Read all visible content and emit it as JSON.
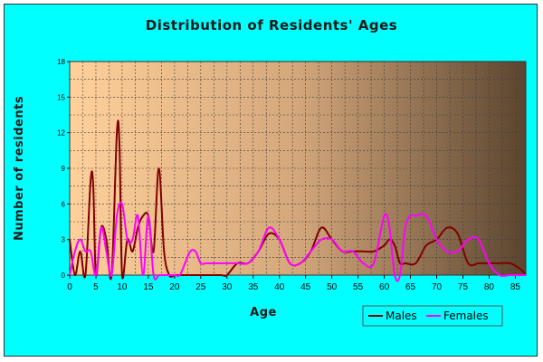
{
  "colors": {
    "frame_background": "#00ffff",
    "plot_gradient_start": "#ffd09a",
    "plot_gradient_mid": "#d4a77b",
    "plot_gradient_end": "#5a4530",
    "males": "#800000",
    "females": "#ff00ff"
  },
  "chart_data": {
    "type": "line",
    "title": "Distribution of Residents' Ages",
    "xlabel": "Age",
    "ylabel": "Number of residents",
    "xlim": [
      0,
      87
    ],
    "ylim": [
      0,
      18
    ],
    "xticks": [
      0,
      5,
      10,
      15,
      20,
      25,
      30,
      35,
      40,
      45,
      50,
      55,
      60,
      65,
      70,
      75,
      80,
      85
    ],
    "yticks": [
      0,
      3,
      6,
      9,
      12,
      15,
      18
    ],
    "grid": true,
    "legend_position": "bottom-right",
    "series": [
      {
        "name": "Males",
        "color": "#800000",
        "x": [
          0,
          1,
          2,
          3,
          4,
          4.5,
          5,
          6,
          7,
          8,
          9,
          9.5,
          10,
          11,
          12,
          13,
          14,
          15,
          16,
          17,
          18,
          19,
          20,
          21,
          22,
          23,
          24,
          25,
          26,
          27,
          28,
          29,
          30,
          32,
          34,
          36,
          38,
          40,
          42,
          44,
          46,
          48,
          50,
          52,
          54,
          56,
          58,
          60,
          61,
          62,
          63,
          64,
          66,
          68,
          70,
          72,
          74,
          76,
          78,
          80,
          82,
          84,
          86,
          87
        ],
        "y": [
          3,
          0,
          2,
          0,
          8,
          7.5,
          0,
          4,
          3,
          0,
          12,
          11,
          0,
          3,
          2,
          4,
          5,
          5,
          2,
          9,
          2,
          0,
          0,
          0,
          0,
          0,
          0,
          0,
          0,
          0,
          0,
          0,
          0,
          1,
          1,
          2,
          3.5,
          3,
          1,
          1,
          2,
          4,
          3,
          2,
          2,
          2,
          2,
          2.5,
          3,
          2.5,
          1,
          1,
          1,
          2.5,
          3,
          4,
          3.5,
          1,
          1,
          1,
          1,
          1,
          0.5,
          0
        ]
      },
      {
        "name": "Females",
        "color": "#ff00ff",
        "x": [
          0,
          1,
          2,
          3,
          4,
          5,
          6,
          7,
          8,
          9,
          10,
          11,
          12,
          13,
          14,
          15,
          16,
          17,
          18,
          19,
          20,
          21,
          22,
          23,
          24,
          25,
          26,
          27,
          28,
          29,
          30,
          32,
          34,
          36,
          38,
          40,
          42,
          44,
          46,
          48,
          50,
          52,
          54,
          56,
          58,
          60,
          61,
          62,
          63,
          64,
          65,
          66,
          68,
          70,
          72,
          74,
          76,
          78,
          80,
          82,
          84,
          86,
          87
        ],
        "y": [
          0,
          2,
          3,
          2,
          2,
          0,
          4,
          2,
          0,
          5,
          6,
          3,
          3,
          5,
          0,
          5,
          0,
          0,
          0,
          0,
          0,
          0,
          1,
          2,
          2,
          1,
          1,
          1,
          1,
          1,
          1,
          1,
          1,
          2,
          4,
          3,
          1,
          1,
          2,
          3,
          3,
          2,
          2,
          1,
          1,
          5,
          4,
          0,
          0,
          4,
          5,
          5,
          5,
          3,
          2,
          2,
          3,
          3,
          1,
          0,
          0,
          0,
          0
        ]
      }
    ]
  }
}
